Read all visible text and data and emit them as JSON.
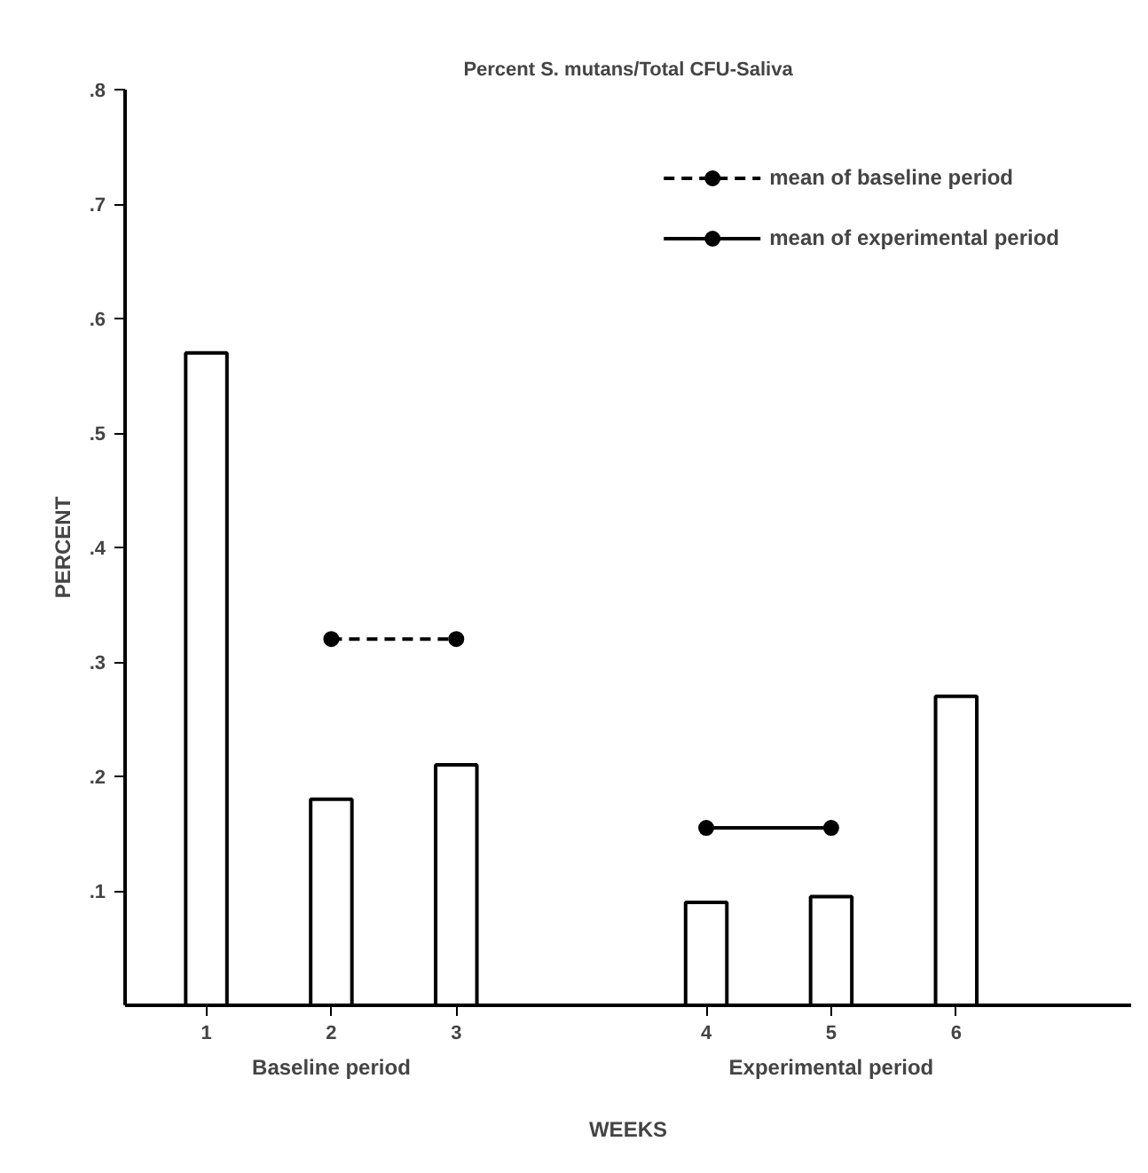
{
  "chart_data": {
    "type": "bar",
    "title": "Percent S. mutans/Total CFU-Saliva",
    "xlabel": "WEEKS",
    "ylabel": "PERCENT",
    "categories": [
      "1",
      "2",
      "3",
      null,
      "4",
      "5",
      "6"
    ],
    "series": [
      {
        "color": "#000000",
        "values": [
          0.57,
          0.18,
          0.21,
          null,
          0.09,
          0.095,
          0.27
        ]
      },
      {
        "type": "line",
        "name": "mean of baseline period",
        "color": "#000000",
        "line_style": "dashed",
        "x": [
          "2",
          "3"
        ],
        "values": [
          0.32,
          0.32
        ]
      },
      {
        "type": "line",
        "name": "mean of experimental period",
        "color": "#000000",
        "line_style": "solid",
        "x": [
          "4",
          "5"
        ],
        "values": [
          0.155,
          0.155
        ]
      }
    ],
    "annotations": [
      "Baseline period",
      "Experimental period"
    ],
    "ylim": [
      0,
      0.8
    ],
    "yticks": [
      {
        "value": 0.1,
        "label": ".1"
      },
      {
        "value": 0.2,
        "label": ".2"
      },
      {
        "value": 0.3,
        "label": ".3"
      },
      {
        "value": 0.4,
        "label": ".4"
      },
      {
        "value": 0.5,
        "label": ".5"
      },
      {
        "value": 0.6,
        "label": ".6"
      },
      {
        "value": 0.7,
        "label": ".7"
      },
      {
        "value": 0.8,
        "label": ".8"
      }
    ],
    "grid": false,
    "legend": "top right",
    "marker": "circle"
  }
}
